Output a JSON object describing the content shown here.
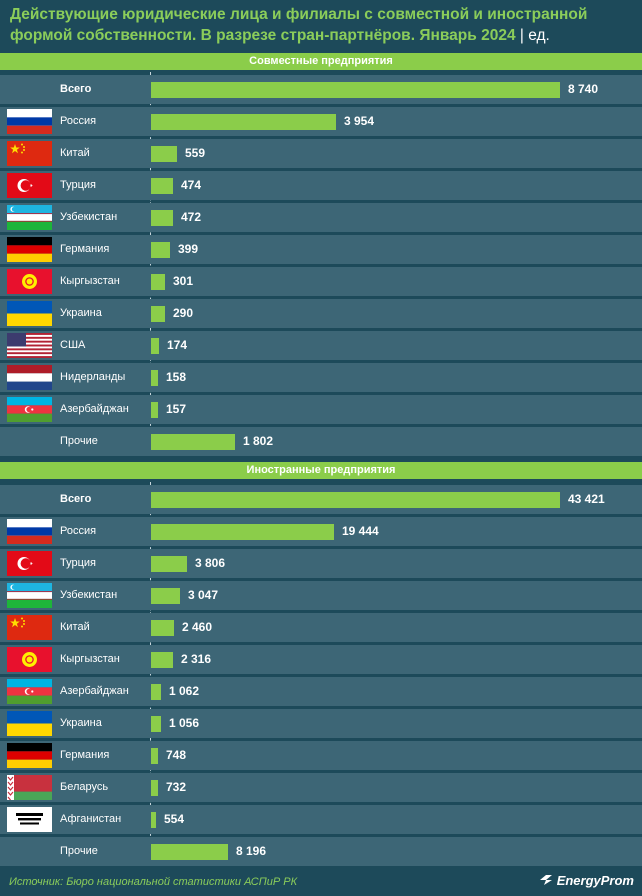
{
  "title": "Действующие юридические лица и филиалы с совместной и иностранной формой собственности. В разрезе стран-партнёров. Январь 2024",
  "title_unit": "| ед.",
  "source": "Источник: Бюро национальной статистики АСПиР РК",
  "brand": "EnergyProm",
  "colors": {
    "bar": "#8bcd4a",
    "row": "#3d6676",
    "background": "#1d4a5a",
    "title": "#8bcd5a"
  },
  "chart_data": [
    {
      "type": "bar",
      "title": "Совместные предприятия",
      "orientation": "horizontal",
      "categories": [
        "Всего",
        "Россия",
        "Китай",
        "Турция",
        "Узбекистан",
        "Германия",
        "Кыргызстан",
        "Украина",
        "США",
        "Нидерланды",
        "Азербайджан",
        "Прочие"
      ],
      "labels": [
        "8 740",
        "3 954",
        "559",
        "474",
        "472",
        "399",
        "301",
        "290",
        "174",
        "158",
        "157",
        "1 802"
      ],
      "values": [
        8740,
        3954,
        559,
        474,
        472,
        399,
        301,
        290,
        174,
        158,
        157,
        1802
      ],
      "flags": [
        "",
        "russia-flag",
        "china-flag",
        "turkey-flag",
        "uzbekistan-flag",
        "germany-flag",
        "kyrgyzstan-flag",
        "ukraine-flag",
        "usa-flag",
        "netherlands-flag",
        "azerbaijan-flag",
        ""
      ]
    },
    {
      "type": "bar",
      "title": "Иностранные предприятия",
      "orientation": "horizontal",
      "categories": [
        "Всего",
        "Россия",
        "Турция",
        "Узбекистан",
        "Китай",
        "Кыргызстан",
        "Азербайджан",
        "Украина",
        "Германия",
        "Беларусь",
        "Афганистан",
        "Прочие"
      ],
      "labels": [
        "43 421",
        "19 444",
        "3 806",
        "3 047",
        "2 460",
        "2 316",
        "1 062",
        "1 056",
        "748",
        "732",
        "554",
        "8 196"
      ],
      "values": [
        43421,
        19444,
        3806,
        3047,
        2460,
        2316,
        1062,
        1056,
        748,
        732,
        554,
        8196
      ],
      "flags": [
        "",
        "russia-flag",
        "turkey-flag",
        "uzbekistan-flag",
        "china-flag",
        "kyrgyzstan-flag",
        "azerbaijan-flag",
        "ukraine-flag",
        "germany-flag",
        "belarus-flag",
        "afghanistan-flag",
        ""
      ]
    }
  ]
}
